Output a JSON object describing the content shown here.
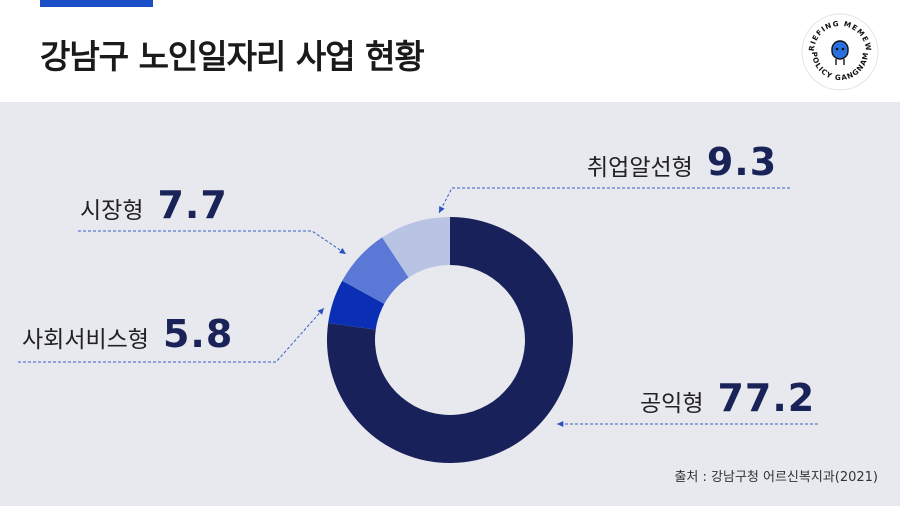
{
  "header": {
    "title": "강남구 노인일자리 사업 현황"
  },
  "logo": {
    "icon": "policy-briefing-badge-icon",
    "text_top": "BRIEFING MEMEWE",
    "text_bottom": "POLICY GANGNAM"
  },
  "chart_data": {
    "type": "pie",
    "donut": true,
    "title": "",
    "categories": [
      "공익형",
      "사회서비스형",
      "시장형",
      "취업알선형"
    ],
    "values": [
      77.2,
      5.8,
      7.7,
      9.3
    ],
    "value_labels": [
      "77.2",
      "5.8",
      "7.7",
      "9.3"
    ],
    "colors": [
      "#182159",
      "#0a2fb5",
      "#5b78d6",
      "#b9c3e4"
    ],
    "start": "12 o'clock",
    "direction": "clockwise",
    "legend": "callouts"
  },
  "source": {
    "text": "출처 : 강남구청 어르신복지과(2021)"
  }
}
